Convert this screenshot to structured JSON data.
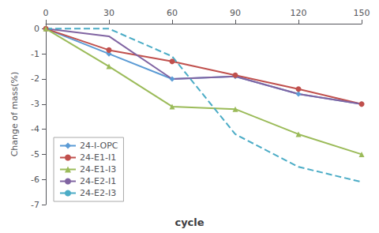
{
  "chart_data": {
    "type": "line",
    "xlabel": "cycle",
    "ylabel": "Change of mass(%)",
    "x": [
      0,
      30,
      60,
      90,
      120,
      150
    ],
    "series": [
      {
        "name": "24-I-OPC",
        "color": "#5B9BD5",
        "values": [
          0,
          -1.0,
          -2.0,
          -1.9,
          -2.6,
          -3.0
        ],
        "marker": "diamond",
        "line_style": "solid"
      },
      {
        "name": "24-E1-I1",
        "color": "#C0504D",
        "values": [
          0,
          -0.85,
          -1.3,
          -1.85,
          -2.4,
          -3.0
        ],
        "marker": "circle",
        "line_style": "solid"
      },
      {
        "name": "24-E1-I3",
        "color": "#9BBB59",
        "values": [
          0,
          -1.5,
          -3.1,
          -3.2,
          -4.2,
          -5.0
        ],
        "marker": "triangle",
        "line_style": "solid"
      },
      {
        "name": "24-E2-I1",
        "color": "#8064A2",
        "values": [
          0,
          -0.3,
          -2.0,
          -1.9,
          -2.6,
          -3.0
        ],
        "marker": "none",
        "line_style": "solid"
      },
      {
        "name": "24-E2-I3",
        "color": "#4BACC6",
        "values": [
          0,
          0.0,
          -1.1,
          -4.2,
          -5.5,
          -6.1
        ],
        "marker": "none",
        "line_style": "dashed"
      }
    ],
    "xlim": [
      0,
      150
    ],
    "ylim": [
      -7.0,
      0.2
    ],
    "xticks": [
      0,
      30,
      60,
      90,
      120,
      150
    ],
    "yticks": [
      0.0,
      -1.0,
      -2.0,
      -3.0,
      -4.0,
      -5.0,
      -6.0,
      -7.0
    ],
    "grid": false,
    "legend": "lower left"
  }
}
